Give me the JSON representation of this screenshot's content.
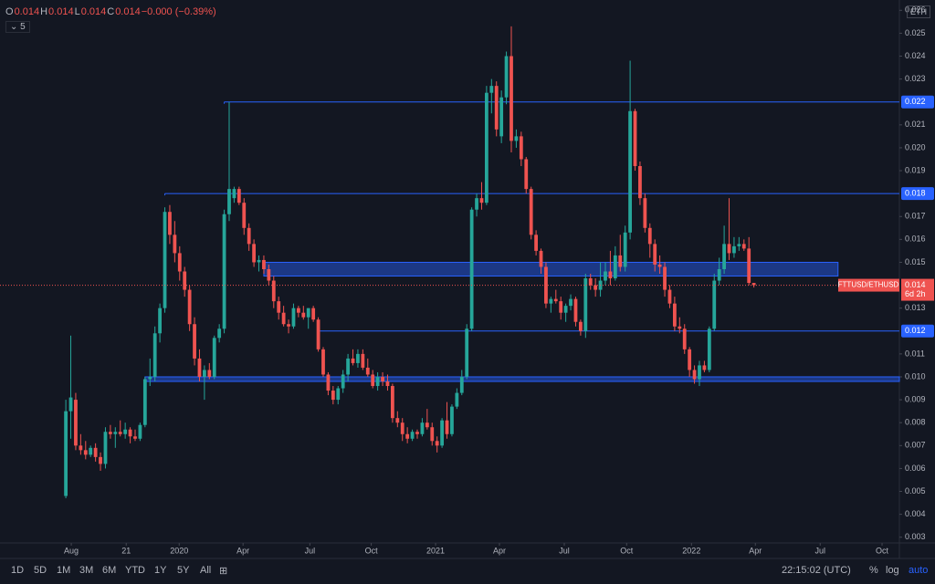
{
  "chart_data": {
    "type": "candlestick",
    "symbol": "FTTUSD/ETHUSD",
    "countdown": "6d 2h",
    "last": 0.014,
    "up_color": "#26a69a",
    "down_color": "#ef5350",
    "ylim": [
      0.00275,
      0.02645
    ],
    "yticks": [
      0.003,
      0.004,
      0.005,
      0.006,
      0.007,
      0.008,
      0.009,
      {
        "value": 0.01,
        "label": "0.010"
      },
      0.011,
      0.013,
      0.015,
      0.016,
      0.017,
      0.019,
      {
        "value": 0.02,
        "label": "0.020"
      },
      0.021,
      0.023,
      0.024,
      0.025,
      0.026
    ],
    "xlim": [
      -13.3,
      168.4
    ],
    "xticks": [
      {
        "value": 1.1,
        "label": "Aug"
      },
      {
        "value": 12.2,
        "label": "21"
      },
      {
        "value": 22.9,
        "label": "2020"
      },
      {
        "value": 35.8,
        "label": "Apr"
      },
      {
        "value": 49.3,
        "label": "Jul"
      },
      {
        "value": 61.7,
        "label": "Oct"
      },
      {
        "value": 74.7,
        "label": "2021"
      },
      {
        "value": 87.6,
        "label": "Apr"
      },
      {
        "value": 100.7,
        "label": "Jul"
      },
      {
        "value": 113.3,
        "label": "Oct"
      },
      {
        "value": 126.4,
        "label": "2022"
      },
      {
        "value": 139.3,
        "label": "Apr"
      },
      {
        "value": 152.4,
        "label": "Jul"
      },
      {
        "value": 164.9,
        "label": "Oct"
      }
    ],
    "levels": [
      {
        "value": 0.022,
        "from": 32
      },
      {
        "value": 0.018,
        "from": 20
      },
      {
        "value": 0.012,
        "from": 51
      }
    ],
    "zones": [
      {
        "low": 0.0144,
        "high": 0.015,
        "from": 40,
        "to": 156
      },
      {
        "low": 0.0098,
        "high": 0.01,
        "from": 16
      }
    ],
    "level_color": "#2962ff",
    "ohlc": [
      [
        0.0048,
        0.009,
        0.0047,
        0.0085
      ],
      [
        0.0085,
        0.0118,
        0.0073,
        0.0091
      ],
      [
        0.009,
        0.0093,
        0.0068,
        0.007
      ],
      [
        0.007,
        0.0075,
        0.0066,
        0.0068
      ],
      [
        0.0068,
        0.0072,
        0.0064,
        0.0066
      ],
      [
        0.0066,
        0.007,
        0.0065,
        0.0069
      ],
      [
        0.0069,
        0.0071,
        0.0063,
        0.0065
      ],
      [
        0.0065,
        0.0067,
        0.0059,
        0.0062
      ],
      [
        0.0062,
        0.0078,
        0.006,
        0.0076
      ],
      [
        0.0076,
        0.0079,
        0.0073,
        0.0075
      ],
      [
        0.0075,
        0.0078,
        0.0069,
        0.0076
      ],
      [
        0.0076,
        0.0081,
        0.0074,
        0.0075
      ],
      [
        0.0075,
        0.008,
        0.0073,
        0.0077
      ],
      [
        0.0077,
        0.0078,
        0.0071,
        0.0074
      ],
      [
        0.0074,
        0.0077,
        0.0072,
        0.0073
      ],
      [
        0.0073,
        0.008,
        0.0072,
        0.0079
      ],
      [
        0.0079,
        0.01,
        0.0078,
        0.0099
      ],
      [
        0.0099,
        0.0108,
        0.0096,
        0.01
      ],
      [
        0.01,
        0.0122,
        0.0098,
        0.0119
      ],
      [
        0.0119,
        0.0132,
        0.0115,
        0.013
      ],
      [
        0.013,
        0.0174,
        0.0128,
        0.0172
      ],
      [
        0.0172,
        0.0175,
        0.0158,
        0.0162
      ],
      [
        0.0162,
        0.0168,
        0.015,
        0.0154
      ],
      [
        0.0154,
        0.0157,
        0.0142,
        0.0146
      ],
      [
        0.0146,
        0.0148,
        0.0135,
        0.0138
      ],
      [
        0.0138,
        0.014,
        0.012,
        0.0123
      ],
      [
        0.0123,
        0.0126,
        0.0105,
        0.0108
      ],
      [
        0.0108,
        0.0112,
        0.0098,
        0.01
      ],
      [
        0.01,
        0.0105,
        0.009,
        0.0103
      ],
      [
        0.0103,
        0.0106,
        0.0099,
        0.01
      ],
      [
        0.01,
        0.0118,
        0.0099,
        0.0117
      ],
      [
        0.0117,
        0.0123,
        0.0115,
        0.0121
      ],
      [
        0.0121,
        0.0173,
        0.0119,
        0.0171
      ],
      [
        0.0171,
        0.022,
        0.0168,
        0.0182
      ],
      [
        0.0178,
        0.0183,
        0.0176,
        0.0182
      ],
      [
        0.0182,
        0.0183,
        0.0175,
        0.0176
      ],
      [
        0.0176,
        0.0178,
        0.0162,
        0.0165
      ],
      [
        0.0165,
        0.0167,
        0.0155,
        0.0158
      ],
      [
        0.0158,
        0.016,
        0.0148,
        0.015
      ],
      [
        0.015,
        0.0153,
        0.0146,
        0.0151
      ],
      [
        0.0151,
        0.0153,
        0.0145,
        0.0147
      ],
      [
        0.0147,
        0.0149,
        0.014,
        0.0142
      ],
      [
        0.0142,
        0.0144,
        0.013,
        0.0133
      ],
      [
        0.0133,
        0.0135,
        0.0125,
        0.0128
      ],
      [
        0.0128,
        0.0131,
        0.0122,
        0.0123
      ],
      [
        0.0123,
        0.0125,
        0.0119,
        0.0122
      ],
      [
        0.0122,
        0.0132,
        0.0121,
        0.013
      ],
      [
        0.013,
        0.0131,
        0.0126,
        0.0128
      ],
      [
        0.0128,
        0.0131,
        0.0125,
        0.0126
      ],
      [
        0.0126,
        0.013,
        0.0121,
        0.013
      ],
      [
        0.013,
        0.0131,
        0.0124,
        0.0125
      ],
      [
        0.0125,
        0.0126,
        0.0111,
        0.0112
      ],
      [
        0.0112,
        0.0113,
        0.01,
        0.0101
      ],
      [
        0.0101,
        0.0102,
        0.0092,
        0.0094
      ],
      [
        0.0094,
        0.0096,
        0.0088,
        0.009
      ],
      [
        0.009,
        0.0096,
        0.0088,
        0.0095
      ],
      [
        0.0095,
        0.0103,
        0.0093,
        0.0101
      ],
      [
        0.0101,
        0.011,
        0.0098,
        0.0108
      ],
      [
        0.0108,
        0.0112,
        0.0105,
        0.0106
      ],
      [
        0.0106,
        0.0112,
        0.0104,
        0.011
      ],
      [
        0.011,
        0.0112,
        0.0103,
        0.0104
      ],
      [
        0.0104,
        0.0108,
        0.01,
        0.0101
      ],
      [
        0.0101,
        0.0103,
        0.0095,
        0.0096
      ],
      [
        0.0096,
        0.0102,
        0.0094,
        0.01
      ],
      [
        0.01,
        0.0102,
        0.0096,
        0.0098
      ],
      [
        0.0098,
        0.0101,
        0.0094,
        0.0096
      ],
      [
        0.0096,
        0.0097,
        0.008,
        0.0082
      ],
      [
        0.0082,
        0.0085,
        0.0078,
        0.008
      ],
      [
        0.008,
        0.0082,
        0.0072,
        0.0075
      ],
      [
        0.0075,
        0.0078,
        0.0071,
        0.0073
      ],
      [
        0.0073,
        0.0077,
        0.0072,
        0.0076
      ],
      [
        0.0076,
        0.0077,
        0.0073,
        0.0075
      ],
      [
        0.0075,
        0.0082,
        0.0074,
        0.008
      ],
      [
        0.008,
        0.0086,
        0.0077,
        0.0078
      ],
      [
        0.0078,
        0.008,
        0.007,
        0.0072
      ],
      [
        0.0072,
        0.0074,
        0.0067,
        0.007
      ],
      [
        0.007,
        0.0082,
        0.0069,
        0.0081
      ],
      [
        0.0081,
        0.0089,
        0.0073,
        0.0075
      ],
      [
        0.0075,
        0.0088,
        0.0074,
        0.0087
      ],
      [
        0.0087,
        0.0095,
        0.0086,
        0.0093
      ],
      [
        0.0093,
        0.0103,
        0.0092,
        0.01
      ],
      [
        0.01,
        0.0123,
        0.0099,
        0.0121
      ],
      [
        0.0121,
        0.0174,
        0.012,
        0.0173
      ],
      [
        0.0173,
        0.018,
        0.017,
        0.0178
      ],
      [
        0.0178,
        0.0185,
        0.0173,
        0.0176
      ],
      [
        0.0176,
        0.0227,
        0.0175,
        0.0224
      ],
      [
        0.0224,
        0.023,
        0.0215,
        0.0227
      ],
      [
        0.0227,
        0.0229,
        0.0205,
        0.0208
      ],
      [
        0.0205,
        0.0225,
        0.0202,
        0.0222
      ],
      [
        0.0222,
        0.0242,
        0.0219,
        0.024
      ],
      [
        0.024,
        0.0253,
        0.0198,
        0.0203
      ],
      [
        0.0203,
        0.0208,
        0.02,
        0.0205
      ],
      [
        0.0205,
        0.0207,
        0.0192,
        0.0195
      ],
      [
        0.0195,
        0.0196,
        0.018,
        0.0182
      ],
      [
        0.0182,
        0.0183,
        0.016,
        0.0162
      ],
      [
        0.0162,
        0.0164,
        0.0153,
        0.0155
      ],
      [
        0.0155,
        0.0156,
        0.0145,
        0.0148
      ],
      [
        0.0148,
        0.015,
        0.013,
        0.0132
      ],
      [
        0.0132,
        0.0135,
        0.0128,
        0.0134
      ],
      [
        0.0134,
        0.0138,
        0.0132,
        0.0133
      ],
      [
        0.0133,
        0.0135,
        0.0125,
        0.0128
      ],
      [
        0.0128,
        0.0132,
        0.0124,
        0.0131
      ],
      [
        0.0131,
        0.0136,
        0.0129,
        0.0134
      ],
      [
        0.0134,
        0.0135,
        0.0122,
        0.0124
      ],
      [
        0.0124,
        0.0125,
        0.0118,
        0.012
      ],
      [
        0.012,
        0.0145,
        0.0117,
        0.0143
      ],
      [
        0.0143,
        0.0145,
        0.0138,
        0.014
      ],
      [
        0.014,
        0.0143,
        0.0135,
        0.0138
      ],
      [
        0.0138,
        0.015,
        0.0135,
        0.0142
      ],
      [
        0.0142,
        0.015,
        0.014,
        0.0146
      ],
      [
        0.0146,
        0.0155,
        0.014,
        0.0143
      ],
      [
        0.0143,
        0.0157,
        0.0142,
        0.0153
      ],
      [
        0.0153,
        0.0162,
        0.0146,
        0.0148
      ],
      [
        0.0148,
        0.0166,
        0.0146,
        0.0163
      ],
      [
        0.0163,
        0.0238,
        0.016,
        0.0216
      ],
      [
        0.0216,
        0.0217,
        0.019,
        0.0192
      ],
      [
        0.0192,
        0.0194,
        0.0175,
        0.0178
      ],
      [
        0.0178,
        0.018,
        0.0163,
        0.0165
      ],
      [
        0.0165,
        0.0167,
        0.0152,
        0.0158
      ],
      [
        0.0158,
        0.016,
        0.0146,
        0.0149
      ],
      [
        0.0149,
        0.0153,
        0.0145,
        0.0148
      ],
      [
        0.0148,
        0.015,
        0.0135,
        0.0138
      ],
      [
        0.0138,
        0.014,
        0.013,
        0.0132
      ],
      [
        0.0132,
        0.0135,
        0.012,
        0.0122
      ],
      [
        0.0122,
        0.0126,
        0.0119,
        0.0121
      ],
      [
        0.0121,
        0.0123,
        0.011,
        0.0112
      ],
      [
        0.0112,
        0.0113,
        0.01,
        0.0103
      ],
      [
        0.0103,
        0.0105,
        0.0097,
        0.0099
      ],
      [
        0.0099,
        0.0107,
        0.0096,
        0.0105
      ],
      [
        0.0105,
        0.0107,
        0.0102,
        0.0103
      ],
      [
        0.0103,
        0.0122,
        0.0102,
        0.0121
      ],
      [
        0.0121,
        0.0145,
        0.012,
        0.0142
      ],
      [
        0.0142,
        0.0152,
        0.014,
        0.0147
      ],
      [
        0.0147,
        0.0166,
        0.0145,
        0.0158
      ],
      [
        0.0158,
        0.0178,
        0.0151,
        0.0154
      ],
      [
        0.0154,
        0.0161,
        0.0152,
        0.0157
      ],
      [
        0.0157,
        0.0161,
        0.0155,
        0.0158
      ],
      [
        0.0158,
        0.016,
        0.0155,
        0.0156
      ],
      [
        0.0156,
        0.0161,
        0.014,
        0.0141
      ],
      [
        0.0141,
        0.0141,
        0.0139,
        0.014
      ]
    ]
  },
  "header": {
    "legend": [
      "O",
      "0.014",
      "H",
      "0.014",
      "L",
      "0.014",
      "C",
      "0.014",
      "−0.000 (−0.39%)"
    ],
    "indicator": "5",
    "currency": "ETH"
  },
  "toolbar": {
    "ranges": [
      "1D",
      "5D",
      "1M",
      "3M",
      "6M",
      "YTD",
      "1Y",
      "5Y",
      "All"
    ],
    "clock": "22:15:02 (UTC)",
    "percent": "%",
    "log": "log",
    "auto": "auto"
  }
}
